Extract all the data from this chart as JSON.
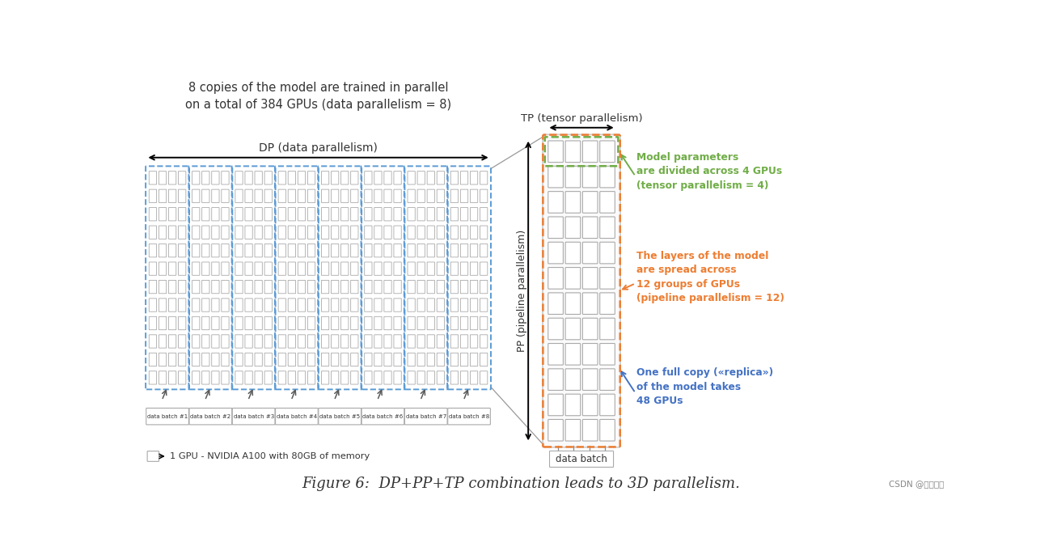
{
  "bg_color": "#ffffff",
  "title_text": "8 copies of the model are trained in parallel\non a total of 384 GPUs (data parallelism = 8)",
  "title_color": "#333333",
  "dp_label": "DP (data parallelism)",
  "pp_label": "PP (pipeline parallelism)",
  "tp_label": "TP (tensor parallelism)",
  "blue_dashed_color": "#5b9bd5",
  "gpu_fill": "#ffffff",
  "gpu_edge": "#aaaaaa",
  "green_dashed_color": "#70ad47",
  "orange_dashed_color": "#ed7d31",
  "gray_arrow_color": "#595959",
  "annotation_green": "#70ad47",
  "annotation_orange": "#ed7d31",
  "annotation_blue": "#4472c4",
  "annotation1_text": "Model parameters\nare divided across 4 GPUs\n(tensor parallelism = 4)",
  "annotation2_text": "The layers of the model\nare spread across\n12 groups of GPUs\n(pipeline parallelism = 12)",
  "annotation3_text": "One full copy («replica»)\nof the model takes\n48 GPUs",
  "legend_text": "1 GPU - NVIDIA A100 with 80GB of memory",
  "data_batch_label": "data batch",
  "figure_caption": "Figure 6:  DP+PP+TP combination leads to 3D parallelism.",
  "watermark": "CSDN @寻道码路",
  "batch_labels": [
    "data batch #1",
    "data batch #2",
    "data batch #3",
    "data batch #4",
    "data batch #5",
    "data batch #6",
    "data batch #7",
    "data batch #8"
  ]
}
